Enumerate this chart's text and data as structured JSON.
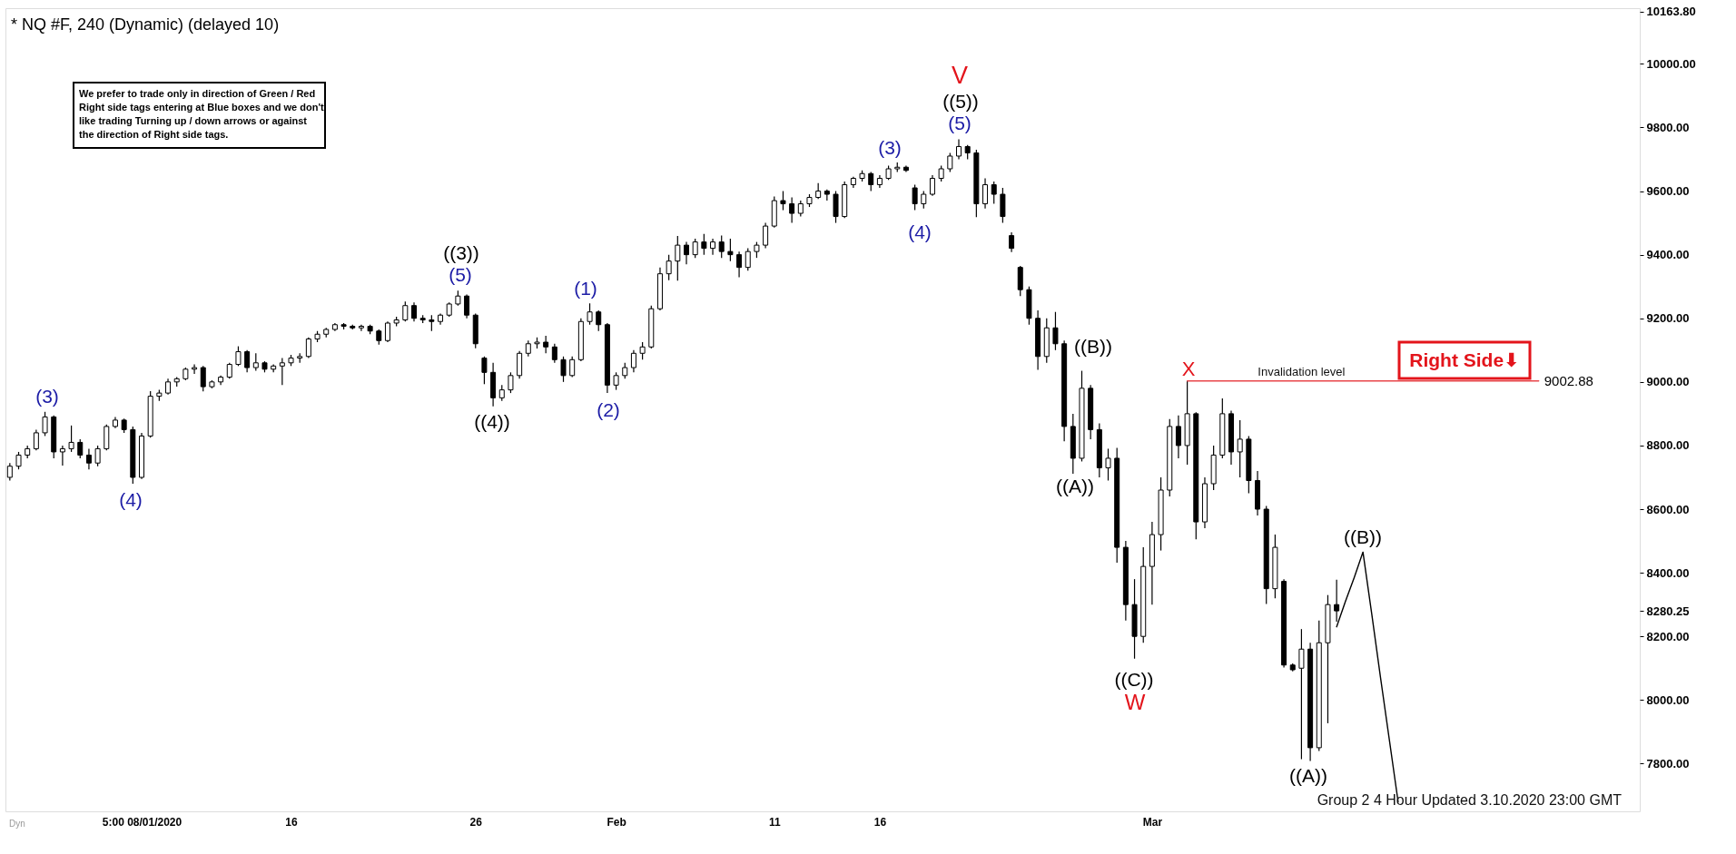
{
  "chart_data": {
    "type": "candlestick",
    "title": "* NQ #F, 240 (Dynamic) (delayed 10)",
    "color": "#000000",
    "categories": [
      null,
      null,
      null,
      null,
      null,
      null,
      null,
      null,
      null,
      null,
      null,
      null,
      null,
      null,
      null,
      "5:00 08/01/2020",
      null,
      null,
      null,
      null,
      null,
      null,
      null,
      null,
      null,
      null,
      null,
      null,
      null,
      null,
      null,
      null,
      "16",
      null,
      null,
      null,
      null,
      null,
      null,
      null,
      null,
      null,
      null,
      null,
      null,
      null,
      null,
      null,
      null,
      null,
      null,
      null,
      null,
      "26",
      null,
      null,
      null,
      null,
      null,
      null,
      null,
      null,
      null,
      null,
      null,
      null,
      null,
      null,
      null,
      "Feb",
      null,
      null,
      null,
      null,
      null,
      null,
      null,
      null,
      null,
      null,
      null,
      null,
      null,
      null,
      null,
      null,
      null,
      "11",
      null,
      null,
      null,
      null,
      null,
      null,
      null,
      null,
      null,
      null,
      null,
      "16",
      null,
      null,
      null,
      null,
      null,
      null,
      null,
      null,
      null,
      null,
      null,
      null,
      null,
      null,
      null,
      null,
      null,
      null,
      null,
      null,
      null,
      null,
      null,
      null,
      null,
      null,
      null,
      null,
      null,
      null,
      "Mar",
      null,
      null,
      null,
      null,
      null,
      null,
      null,
      null,
      null,
      null,
      null,
      null,
      null,
      null,
      null,
      null,
      null,
      null,
      null,
      null,
      null,
      null,
      null,
      null,
      null,
      null,
      null,
      null,
      null,
      null,
      null,
      null,
      null,
      null,
      null,
      null,
      null,
      null,
      null,
      null,
      null,
      null,
      null,
      null,
      null,
      null,
      null,
      null,
      null,
      null,
      null,
      null,
      null,
      null,
      null
    ],
    "ohlc": [
      [
        8700,
        8745,
        8690,
        8735
      ],
      [
        8735,
        8780,
        8725,
        8770
      ],
      [
        8770,
        8800,
        8760,
        8790
      ],
      [
        8790,
        8850,
        8785,
        8840
      ],
      [
        8840,
        8906,
        8830,
        8890
      ],
      [
        8890,
        8895,
        8760,
        8780
      ],
      [
        8780,
        8800,
        8737,
        8790
      ],
      [
        8790,
        8863,
        8780,
        8810
      ],
      [
        8810,
        8820,
        8760,
        8770
      ],
      [
        8770,
        8790,
        8725,
        8745
      ],
      [
        8745,
        8800,
        8735,
        8790
      ],
      [
        8790,
        8866,
        8785,
        8860
      ],
      [
        8860,
        8890,
        8855,
        8880
      ],
      [
        8880,
        8885,
        8840,
        8850
      ],
      [
        8850,
        8860,
        8680,
        8700
      ],
      [
        8700,
        8840,
        8695,
        8830
      ],
      [
        8830,
        8971,
        8825,
        8955
      ],
      [
        8955,
        8975,
        8940,
        8965
      ],
      [
        8965,
        9010,
        8960,
        9000
      ],
      [
        9000,
        9015,
        8985,
        9010
      ],
      [
        9010,
        9045,
        9005,
        9040
      ],
      [
        9040,
        9055,
        9025,
        9045
      ],
      [
        9045,
        9050,
        8970,
        8985
      ],
      [
        8985,
        9005,
        8980,
        9000
      ],
      [
        9000,
        9020,
        8990,
        9015
      ],
      [
        9015,
        9060,
        9010,
        9055
      ],
      [
        9055,
        9112,
        9050,
        9095
      ],
      [
        9095,
        9100,
        9030,
        9045
      ],
      [
        9045,
        9090,
        9035,
        9060
      ],
      [
        9060,
        9065,
        9030,
        9040
      ],
      [
        9040,
        9055,
        9030,
        9050
      ],
      [
        9050,
        9075,
        8990,
        9060
      ],
      [
        9060,
        9085,
        9050,
        9075
      ],
      [
        9075,
        9090,
        9060,
        9080
      ],
      [
        9080,
        9140,
        9075,
        9135
      ],
      [
        9135,
        9160,
        9125,
        9150
      ],
      [
        9150,
        9170,
        9140,
        9165
      ],
      [
        9165,
        9185,
        9160,
        9180
      ],
      [
        9180,
        9185,
        9165,
        9175
      ],
      [
        9175,
        9180,
        9165,
        9170
      ],
      [
        9170,
        9180,
        9160,
        9175
      ],
      [
        9175,
        9180,
        9150,
        9160
      ],
      [
        9160,
        9165,
        9117,
        9130
      ],
      [
        9130,
        9190,
        9125,
        9185
      ],
      [
        9185,
        9205,
        9175,
        9195
      ],
      [
        9195,
        9253,
        9190,
        9240
      ],
      [
        9240,
        9250,
        9190,
        9200
      ],
      [
        9200,
        9210,
        9185,
        9195
      ],
      [
        9195,
        9210,
        9160,
        9190
      ],
      [
        9190,
        9215,
        9180,
        9210
      ],
      [
        9210,
        9250,
        9205,
        9245
      ],
      [
        9245,
        9287,
        9240,
        9270
      ],
      [
        9270,
        9275,
        9200,
        9210
      ],
      [
        9210,
        9215,
        9106,
        9120
      ],
      [
        9075,
        9080,
        8993,
        9030
      ],
      [
        9030,
        9060,
        8923,
        8950
      ],
      [
        8950,
        8990,
        8940,
        8975
      ],
      [
        8975,
        9030,
        8965,
        9020
      ],
      [
        9020,
        9097,
        9010,
        9090
      ],
      [
        9090,
        9130,
        9080,
        9120
      ],
      [
        9120,
        9140,
        9105,
        9125
      ],
      [
        9125,
        9145,
        9090,
        9110
      ],
      [
        9110,
        9120,
        9060,
        9070
      ],
      [
        9070,
        9080,
        9000,
        9020
      ],
      [
        9020,
        9080,
        9015,
        9070
      ],
      [
        9070,
        9200,
        9065,
        9190
      ],
      [
        9190,
        9247,
        9180,
        9220
      ],
      [
        9220,
        9225,
        9160,
        9180
      ],
      [
        9180,
        9185,
        8965,
        8990
      ],
      [
        8990,
        9030,
        8975,
        9020
      ],
      [
        9020,
        9060,
        9010,
        9045
      ],
      [
        9045,
        9100,
        9030,
        9090
      ],
      [
        9090,
        9125,
        9070,
        9110
      ],
      [
        9110,
        9240,
        9105,
        9230
      ],
      [
        9230,
        9360,
        9225,
        9340
      ],
      [
        9340,
        9400,
        9320,
        9380
      ],
      [
        9380,
        9459,
        9318,
        9430
      ],
      [
        9430,
        9440,
        9370,
        9400
      ],
      [
        9400,
        9450,
        9390,
        9440
      ],
      [
        9440,
        9465,
        9400,
        9420
      ],
      [
        9420,
        9450,
        9400,
        9440
      ],
      [
        9440,
        9460,
        9390,
        9410
      ],
      [
        9410,
        9450,
        9380,
        9400
      ],
      [
        9400,
        9410,
        9329,
        9360
      ],
      [
        9360,
        9420,
        9350,
        9410
      ],
      [
        9410,
        9440,
        9390,
        9430
      ],
      [
        9430,
        9500,
        9420,
        9490
      ],
      [
        9490,
        9583,
        9485,
        9570
      ],
      [
        9570,
        9600,
        9540,
        9560
      ],
      [
        9560,
        9580,
        9500,
        9530
      ],
      [
        9530,
        9570,
        9520,
        9560
      ],
      [
        9560,
        9590,
        9550,
        9580
      ],
      [
        9580,
        9625,
        9575,
        9600
      ],
      [
        9600,
        9605,
        9570,
        9590
      ],
      [
        9590,
        9600,
        9500,
        9520
      ],
      [
        9520,
        9630,
        9515,
        9620
      ],
      [
        9620,
        9645,
        9610,
        9640
      ],
      [
        9640,
        9665,
        9630,
        9655
      ],
      [
        9655,
        9660,
        9600,
        9620
      ],
      [
        9620,
        9650,
        9610,
        9640
      ],
      [
        9640,
        9680,
        9635,
        9670
      ],
      [
        9670,
        9690,
        9660,
        9675
      ],
      [
        9675,
        9680,
        9660,
        9665
      ],
      [
        9610,
        9620,
        9540,
        9560
      ],
      [
        9560,
        9600,
        9545,
        9590
      ],
      [
        9590,
        9650,
        9585,
        9640
      ],
      [
        9640,
        9680,
        9630,
        9670
      ],
      [
        9670,
        9720,
        9660,
        9710
      ],
      [
        9710,
        9763,
        9700,
        9740
      ],
      [
        9740,
        9745,
        9700,
        9720
      ],
      [
        9720,
        9730,
        9518,
        9560
      ],
      [
        9560,
        9640,
        9545,
        9620
      ],
      [
        9620,
        9630,
        9560,
        9590
      ],
      [
        9590,
        9610,
        9500,
        9520
      ],
      [
        9460,
        9470,
        9408,
        9420
      ],
      [
        9360,
        9365,
        9270,
        9290
      ],
      [
        9290,
        9300,
        9180,
        9200
      ],
      [
        9200,
        9225,
        9038,
        9080
      ],
      [
        9080,
        9200,
        9060,
        9170
      ],
      [
        9170,
        9220,
        9100,
        9120
      ],
      [
        9120,
        9130,
        8813,
        8860
      ],
      [
        8860,
        8900,
        8711,
        8760
      ],
      [
        8760,
        9035,
        8750,
        8980
      ],
      [
        8980,
        8990,
        8820,
        8850
      ],
      [
        8850,
        8870,
        8700,
        8730
      ],
      [
        8730,
        8790,
        8690,
        8760
      ],
      [
        8760,
        8793,
        8432,
        8480
      ],
      [
        8480,
        8500,
        8250,
        8300
      ],
      [
        8300,
        8380,
        8130,
        8200
      ],
      [
        8200,
        8480,
        8180,
        8420
      ],
      [
        8420,
        8560,
        8300,
        8520
      ],
      [
        8520,
        8700,
        8470,
        8660
      ],
      [
        8660,
        8883,
        8640,
        8860
      ],
      [
        8860,
        8895,
        8760,
        8800
      ],
      [
        8800,
        9002.88,
        8740,
        8900
      ],
      [
        8900,
        8905,
        8505,
        8560
      ],
      [
        8560,
        8700,
        8540,
        8680
      ],
      [
        8680,
        8800,
        8660,
        8770
      ],
      [
        8770,
        8948,
        8760,
        8900
      ],
      [
        8900,
        8910,
        8740,
        8780
      ],
      [
        8780,
        8880,
        8700,
        8820
      ],
      [
        8820,
        8830,
        8650,
        8690
      ],
      [
        8690,
        8720,
        8580,
        8600
      ],
      [
        8600,
        8610,
        8302,
        8350
      ],
      [
        8350,
        8520,
        8320,
        8480
      ],
      [
        8373,
        8380,
        8102,
        8110
      ],
      [
        8110,
        8115,
        8090,
        8095
      ],
      [
        8100,
        8223,
        7814,
        8160
      ],
      [
        8160,
        8180,
        7808,
        7850
      ],
      [
        7850,
        8250,
        7840,
        8180
      ],
      [
        8180,
        8330,
        7927,
        8300
      ],
      [
        8300,
        8378,
        8246,
        8280.25
      ],
      null,
      null,
      null,
      null,
      null,
      null,
      null,
      null,
      null,
      null,
      null,
      null,
      null,
      null,
      null,
      null,
      null,
      null,
      null,
      null,
      null,
      null,
      null,
      null,
      null,
      null,
      null,
      null,
      null,
      null,
      null,
      null,
      null,
      null
    ],
    "series": [
      {
        "type": "line",
        "color": "#000000",
        "values": [
          null,
          null,
          null,
          null,
          null,
          null,
          null,
          null,
          null,
          null,
          null,
          null,
          null,
          null,
          null,
          null,
          null,
          null,
          null,
          null,
          null,
          null,
          null,
          null,
          null,
          null,
          null,
          null,
          null,
          null,
          null,
          null,
          null,
          null,
          null,
          null,
          null,
          null,
          null,
          null,
          null,
          null,
          null,
          null,
          null,
          null,
          null,
          null,
          null,
          null,
          null,
          null,
          null,
          null,
          null,
          null,
          null,
          null,
          null,
          null,
          null,
          null,
          null,
          null,
          null,
          null,
          null,
          null,
          null,
          null,
          null,
          null,
          null,
          null,
          null,
          null,
          null,
          null,
          null,
          null,
          null,
          null,
          null,
          null,
          null,
          null,
          null,
          null,
          null,
          null,
          null,
          null,
          null,
          null,
          null,
          null,
          null,
          null,
          null,
          null,
          null,
          null,
          null,
          null,
          null,
          null,
          null,
          null,
          null,
          null,
          null,
          null,
          null,
          null,
          null,
          null,
          null,
          null,
          null,
          null,
          null,
          null,
          null,
          null,
          null,
          null,
          null,
          null,
          null,
          null,
          null,
          null,
          null,
          null,
          null,
          null,
          null,
          null,
          null,
          null,
          null,
          null,
          null,
          null,
          null,
          null,
          null,
          null,
          null,
          null,
          null,
          8230,
          8310,
          8385,
          8465,
          8270,
          8070,
          7875,
          7680,
          null,
          null,
          null,
          null,
          null,
          null,
          null,
          null,
          null,
          null,
          null,
          null,
          null,
          null,
          null,
          null,
          null,
          null,
          null,
          null,
          null,
          null,
          null,
          null,
          null,
          null,
          null
        ]
      },
      {
        "type": "line",
        "name": "Invalidation level",
        "color": "#e8464a",
        "values": [
          null,
          null,
          null,
          null,
          null,
          null,
          null,
          null,
          null,
          null,
          null,
          null,
          null,
          null,
          null,
          null,
          null,
          null,
          null,
          null,
          null,
          null,
          null,
          null,
          null,
          null,
          null,
          null,
          null,
          null,
          null,
          null,
          null,
          null,
          null,
          null,
          null,
          null,
          null,
          null,
          null,
          null,
          null,
          null,
          null,
          null,
          null,
          null,
          null,
          null,
          null,
          null,
          null,
          null,
          null,
          null,
          null,
          null,
          null,
          null,
          null,
          null,
          null,
          null,
          null,
          null,
          null,
          null,
          null,
          null,
          null,
          null,
          null,
          null,
          null,
          null,
          null,
          null,
          null,
          null,
          null,
          null,
          null,
          null,
          null,
          null,
          null,
          null,
          null,
          null,
          null,
          null,
          null,
          null,
          null,
          null,
          null,
          null,
          null,
          null,
          null,
          null,
          null,
          null,
          null,
          null,
          null,
          null,
          null,
          null,
          null,
          null,
          null,
          null,
          null,
          null,
          null,
          null,
          null,
          null,
          null,
          null,
          null,
          null,
          null,
          null,
          null,
          null,
          null,
          null,
          null,
          null,
          null,
          null,
          9002.88,
          9002.88,
          9002.88,
          9002.88,
          9002.88,
          9002.88,
          9002.88,
          9002.88,
          9002.88,
          9002.88,
          9002.88,
          9002.88,
          9002.88,
          9002.88,
          9002.88,
          9002.88,
          9002.88,
          9002.88,
          9002.88,
          9002.88,
          9002.88,
          9002.88,
          9002.88,
          9002.88,
          9002.88,
          9002.88,
          9002.88,
          9002.88,
          9002.88,
          9002.88,
          9002.88,
          9002.88,
          9002.88,
          9002.88,
          9002.88,
          9002.88,
          9002.88,
          9002.88,
          9002.88,
          9002.88,
          9002.88,
          null,
          null,
          null,
          null,
          null,
          null,
          null,
          null,
          null,
          null,
          null
        ],
        "value_labels": [
          null,
          null,
          null,
          null,
          null,
          null,
          null,
          null,
          null,
          null,
          null,
          null,
          null,
          null,
          null,
          null,
          null,
          null,
          null,
          null,
          null,
          null,
          null,
          null,
          null,
          null,
          null,
          null,
          null,
          null,
          null,
          null,
          null,
          null,
          null,
          null,
          null,
          null,
          null,
          null,
          null,
          null,
          null,
          null,
          null,
          null,
          null,
          null,
          null,
          null,
          null,
          null,
          null,
          null,
          null,
          null,
          null,
          null,
          null,
          null,
          null,
          null,
          null,
          null,
          null,
          null,
          null,
          null,
          null,
          null,
          null,
          null,
          null,
          null,
          null,
          null,
          null,
          null,
          null,
          null,
          null,
          null,
          null,
          null,
          null,
          null,
          null,
          null,
          null,
          null,
          null,
          null,
          null,
          null,
          null,
          null,
          null,
          null,
          null,
          null,
          null,
          null,
          null,
          null,
          null,
          null,
          null,
          null,
          null,
          null,
          null,
          null,
          null,
          null,
          null,
          null,
          null,
          null,
          null,
          null,
          null,
          null,
          null,
          null,
          null,
          null,
          null,
          null,
          null,
          null,
          null,
          null,
          null,
          null,
          null,
          null,
          null,
          null,
          null,
          null,
          null,
          null,
          null,
          null,
          null,
          null,
          null,
          null,
          null,
          null,
          null,
          null,
          null,
          null,
          null,
          null,
          null,
          null,
          null,
          null,
          null,
          null,
          null,
          null,
          null,
          null,
          null,
          null,
          null,
          null,
          null,
          null,
          null,
          null,
          "9002.88",
          null,
          null,
          null,
          null,
          null,
          null,
          null,
          null,
          null,
          null,
          null
        ]
      }
    ],
    "ylim": [
      7650,
      10175
    ],
    "yticks": [
      {
        "value": 7800,
        "label": "7800.00"
      },
      {
        "value": 8000,
        "label": "8000.00"
      },
      {
        "value": 8200,
        "label": "8200.00"
      },
      {
        "value": 8280.25,
        "label": "8280.25"
      },
      {
        "value": 8400,
        "label": "8400.00"
      },
      {
        "value": 8600,
        "label": "8600.00"
      },
      {
        "value": 8800,
        "label": "8800.00"
      },
      {
        "value": 9000,
        "label": "9000.00"
      },
      {
        "value": 9200,
        "label": "9200.00"
      },
      {
        "value": 9400,
        "label": "9400.00"
      },
      {
        "value": 9600,
        "label": "9600.00"
      },
      {
        "value": 9800,
        "label": "9800.00"
      },
      {
        "value": 10000,
        "label": "10000.00"
      },
      {
        "value": 10163.8,
        "label": "10163.80"
      }
    ],
    "annotations": [
      "We prefer to trade only in direction of Green / Red\nRight side tags entering at Blue boxes and we don't\nlike trading Turning up / down arrows or against\nthe direction of Right side tags.",
      "(3)",
      "(4)",
      "((3))",
      "(5)",
      "((4))",
      "(1)",
      "(2)",
      "(3)",
      "(4)",
      "V",
      "((5))",
      "(5)",
      "((B))",
      "((A))",
      "((C))",
      "W",
      "X",
      "((A))",
      "((B))",
      "Right Side⬇",
      "Group 2 4 Hour Updated 3.10.2020 23:00 GMT",
      "Dyn"
    ]
  }
}
